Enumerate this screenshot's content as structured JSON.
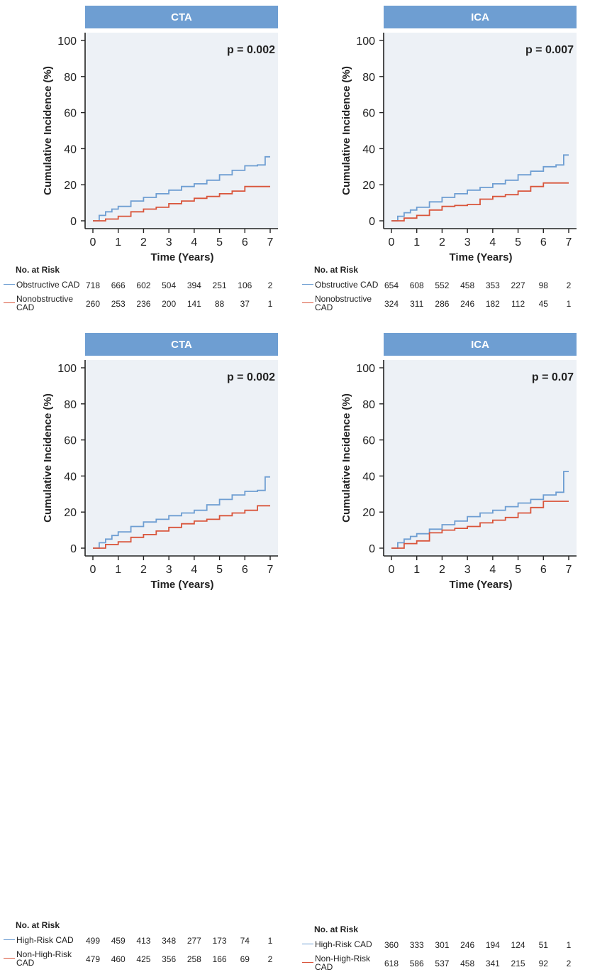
{
  "colors": {
    "series_1": "#6e9ed2",
    "series_2": "#d9553b",
    "header_bg": "#6e9ed2",
    "plot_bg": "#edf1f6"
  },
  "chart_data": [
    {
      "type": "line",
      "title": "CTA",
      "annotation": "p = 0.002",
      "xlabel": "Time (Years)",
      "ylabel": "Cumulative Incidence (%)",
      "xlim": [
        0,
        7
      ],
      "ylim": [
        0,
        100
      ],
      "xticks": [
        0,
        1,
        2,
        3,
        4,
        5,
        6,
        7
      ],
      "yticks": [
        0,
        20,
        40,
        60,
        80,
        100
      ],
      "grid": false,
      "series": [
        {
          "risk_label": "Obstructive CAD",
          "x": [
            0,
            0.25,
            0.5,
            0.75,
            1,
            1.5,
            2,
            2.5,
            3,
            3.5,
            4,
            4.5,
            5,
            5.5,
            6,
            6.5,
            6.8,
            7
          ],
          "y": [
            0,
            3,
            5,
            6.5,
            8,
            11,
            13,
            15,
            17,
            19,
            20.5,
            22.5,
            25.5,
            28,
            30.5,
            31,
            35.5,
            35.5
          ]
        },
        {
          "risk_label": "Nonobstructive CAD",
          "x": [
            0,
            0.5,
            1,
            1.5,
            2,
            2.5,
            3,
            3.5,
            4,
            4.5,
            5,
            5.5,
            6,
            7
          ],
          "y": [
            0,
            1,
            2.5,
            5,
            6.5,
            7.5,
            9.5,
            11,
            12.5,
            13.5,
            15,
            16.5,
            19,
            19
          ]
        }
      ],
      "risk_title": "No. at Risk",
      "risk_table": [
        {
          "label": "Obstructive CAD",
          "values": [
            "718",
            "666",
            "602",
            "504",
            "394",
            "251",
            "106",
            "2"
          ]
        },
        {
          "label": "Nonobstructive CAD",
          "values": [
            "260",
            "253",
            "236",
            "200",
            "141",
            "88",
            "37",
            "1"
          ]
        }
      ]
    },
    {
      "type": "line",
      "title": "ICA",
      "annotation": "p = 0.007",
      "xlabel": "Time (Years)",
      "ylabel": "Cumulative Incidence (%)",
      "xlim": [
        0,
        7
      ],
      "ylim": [
        0,
        100
      ],
      "xticks": [
        0,
        1,
        2,
        3,
        4,
        5,
        6,
        7
      ],
      "yticks": [
        0,
        20,
        40,
        60,
        80,
        100
      ],
      "grid": false,
      "series": [
        {
          "risk_label": "Obstructive CAD",
          "x": [
            0,
            0.25,
            0.5,
            0.75,
            1,
            1.5,
            2,
            2.5,
            3,
            3.5,
            4,
            4.5,
            5,
            5.5,
            6,
            6.5,
            6.8,
            7
          ],
          "y": [
            0,
            2.5,
            4.5,
            6,
            7.5,
            10.5,
            13,
            15,
            17,
            18.5,
            20.5,
            22.5,
            25.5,
            27.5,
            30,
            31,
            36.5,
            36.5
          ]
        },
        {
          "risk_label": "Nonobstructive CAD",
          "x": [
            0,
            0.5,
            1,
            1.5,
            2,
            2.5,
            3,
            3.5,
            4,
            4.5,
            5,
            5.5,
            6,
            7
          ],
          "y": [
            0,
            1.5,
            3,
            6,
            8,
            8.5,
            9,
            12,
            13.5,
            14.5,
            16.5,
            19,
            21,
            21
          ]
        }
      ],
      "risk_title": "No. at Risk",
      "risk_table": [
        {
          "label": "Obstructive CAD",
          "values": [
            "654",
            "608",
            "552",
            "458",
            "353",
            "227",
            "98",
            "2"
          ]
        },
        {
          "label": "Nonobstructive CAD",
          "values": [
            "324",
            "311",
            "286",
            "246",
            "182",
            "112",
            "45",
            "1"
          ]
        }
      ]
    },
    {
      "type": "line",
      "title": "CTA",
      "annotation": "p = 0.002",
      "xlabel": "Time (Years)",
      "ylabel": "Cumulative Incidence (%)",
      "xlim": [
        0,
        7
      ],
      "ylim": [
        0,
        100
      ],
      "xticks": [
        0,
        1,
        2,
        3,
        4,
        5,
        6,
        7
      ],
      "yticks": [
        0,
        20,
        40,
        60,
        80,
        100
      ],
      "grid": false,
      "series": [
        {
          "risk_label": "High-Risk CAD",
          "x": [
            0,
            0.25,
            0.5,
            0.75,
            1,
            1.5,
            2,
            2.5,
            3,
            3.5,
            4,
            4.5,
            5,
            5.5,
            6,
            6.5,
            6.8,
            7
          ],
          "y": [
            0,
            3,
            5,
            7,
            9,
            12,
            14.5,
            16,
            18,
            19.5,
            21,
            24,
            27,
            29.5,
            31.5,
            32,
            39.5,
            39.5
          ]
        },
        {
          "risk_label": "Non-High-Risk CAD",
          "x": [
            0,
            0.5,
            1,
            1.5,
            2,
            2.5,
            3,
            3.5,
            4,
            4.5,
            5,
            5.5,
            6,
            6.5,
            7
          ],
          "y": [
            0,
            2,
            3.5,
            6,
            7.5,
            9.5,
            11.5,
            13.5,
            15,
            16,
            18,
            19.5,
            21,
            23.5,
            23.5
          ]
        }
      ],
      "risk_title": "No. at Risk",
      "risk_table": [
        {
          "label": "High-Risk CAD",
          "values": [
            "499",
            "459",
            "413",
            "348",
            "277",
            "173",
            "74",
            "1"
          ]
        },
        {
          "label": "Non-High-Risk CAD",
          "values": [
            "479",
            "460",
            "425",
            "356",
            "258",
            "166",
            "69",
            "2"
          ]
        }
      ]
    },
    {
      "type": "line",
      "title": "ICA",
      "annotation": "p = 0.07",
      "xlabel": "Time (Years)",
      "ylabel": "Cumulative Incidence (%)",
      "xlim": [
        0,
        7
      ],
      "ylim": [
        0,
        100
      ],
      "xticks": [
        0,
        1,
        2,
        3,
        4,
        5,
        6,
        7
      ],
      "yticks": [
        0,
        20,
        40,
        60,
        80,
        100
      ],
      "grid": false,
      "series": [
        {
          "risk_label": "High-Risk CAD",
          "x": [
            0,
            0.25,
            0.5,
            0.75,
            1,
            1.5,
            2,
            2.5,
            3,
            3.5,
            4,
            4.5,
            5,
            5.5,
            6,
            6.5,
            6.8,
            7
          ],
          "y": [
            0,
            3,
            5,
            6.5,
            8,
            10.5,
            13,
            15,
            17.5,
            19.5,
            21,
            23,
            25,
            27,
            29.5,
            31,
            42.5,
            42.5
          ]
        },
        {
          "risk_label": "Non-High-Risk CAD",
          "x": [
            0,
            0.5,
            1,
            1.5,
            2,
            2.5,
            3,
            3.5,
            4,
            4.5,
            5,
            5.5,
            6,
            7
          ],
          "y": [
            0,
            2.5,
            4,
            8.5,
            10,
            11,
            12,
            14,
            15.5,
            17,
            19.5,
            22.5,
            26,
            26
          ]
        }
      ],
      "risk_title": "No. at Risk",
      "risk_table": [
        {
          "label": "High-Risk CAD",
          "values": [
            "360",
            "333",
            "301",
            "246",
            "194",
            "124",
            "51",
            "1"
          ]
        },
        {
          "label": "Non-High-Risk CAD",
          "values": [
            "618",
            "586",
            "537",
            "458",
            "341",
            "215",
            "92",
            "2"
          ]
        }
      ]
    }
  ]
}
